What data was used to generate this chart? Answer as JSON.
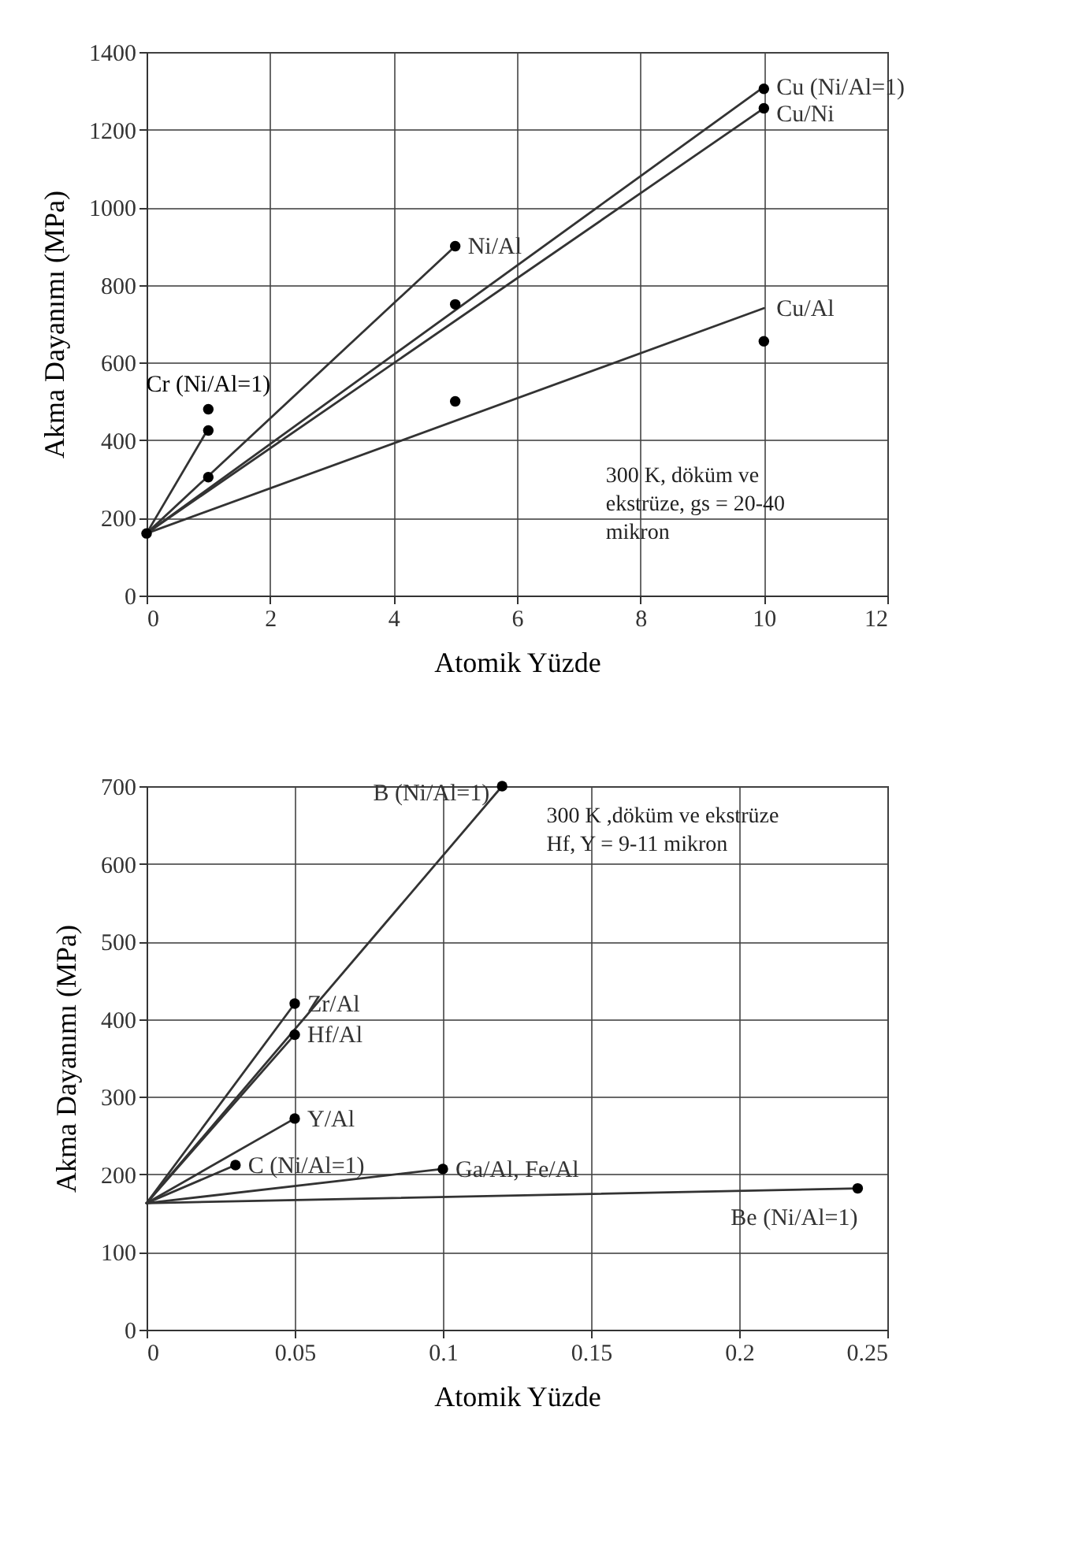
{
  "chart_data": [
    {
      "type": "line",
      "xlabel": "Atomik Yüzde",
      "ylabel": "Akma Dayanımı (MPa)",
      "xlim": [
        0,
        12
      ],
      "xticks": [
        0,
        2,
        4,
        6,
        8,
        10,
        12
      ],
      "ylim": [
        0,
        1400
      ],
      "yticks": [
        0,
        200,
        400,
        600,
        800,
        1000,
        1200,
        1400
      ],
      "grid": true,
      "series": [
        {
          "type": "scatter",
          "name": "Cr (Ni/Al=1)",
          "marker": "circle",
          "color": "#000000",
          "x": [
            1
          ],
          "values": [
            480
          ]
        },
        {
          "type": "line",
          "color": "#333333",
          "x": [
            0,
            1
          ],
          "values": [
            160,
            430
          ]
        },
        {
          "type": "line",
          "name": "Ni/Al",
          "color": "#333333",
          "x": [
            0,
            5
          ],
          "values": [
            160,
            900
          ]
        },
        {
          "type": "line",
          "name": "Cu (Ni/Al=1)",
          "color": "#333333",
          "x": [
            0,
            10
          ],
          "values": [
            160,
            1310
          ]
        },
        {
          "type": "line",
          "name": "Cu/Ni",
          "color": "#333333",
          "x": [
            0,
            10
          ],
          "values": [
            160,
            1255
          ]
        },
        {
          "type": "line",
          "name": "Cu/Al",
          "color": "#333333",
          "x": [
            0,
            10
          ],
          "values": [
            160,
            740
          ]
        },
        {
          "type": "scatter",
          "marker": "circle",
          "color": "#000000",
          "x": [
            0,
            1,
            1,
            5,
            5,
            5,
            10,
            10,
            10
          ],
          "values": [
            160,
            425,
            305,
            900,
            750,
            500,
            1305,
            1255,
            655
          ]
        }
      ],
      "annotations": [
        "300 K, döküm ve ekstrüze, gs = 20-40 mikron"
      ]
    },
    {
      "type": "line",
      "xlabel": "Atomik Yüzde",
      "ylabel": "Akma Dayanımı (MPa)",
      "xlim": [
        0,
        0.25
      ],
      "xticks": [
        0,
        0.05,
        0.1,
        0.15,
        0.2,
        0.25
      ],
      "ylim": [
        0,
        700
      ],
      "yticks": [
        0,
        100,
        200,
        300,
        400,
        500,
        600,
        700
      ],
      "grid": true,
      "series": [
        {
          "type": "line",
          "name": "B (Ni/Al=1)",
          "color": "#333333",
          "x": [
            0,
            0.12
          ],
          "values": [
            163,
            700
          ]
        },
        {
          "type": "line",
          "name": "Zr/Al",
          "color": "#333333",
          "x": [
            0,
            0.05
          ],
          "values": [
            163,
            420
          ]
        },
        {
          "type": "line",
          "name": "Hf/Al",
          "color": "#333333",
          "x": [
            0,
            0.05
          ],
          "values": [
            163,
            380
          ]
        },
        {
          "type": "line",
          "name": "Y/Al",
          "color": "#333333",
          "x": [
            0,
            0.05
          ],
          "values": [
            163,
            272
          ]
        },
        {
          "type": "line",
          "name": "C (Ni/Al=1)",
          "color": "#333333",
          "x": [
            0,
            0.03
          ],
          "values": [
            163,
            212
          ]
        },
        {
          "type": "line",
          "name": "Ga/Al, Fe/Al",
          "color": "#333333",
          "x": [
            0,
            0.1
          ],
          "values": [
            163,
            207
          ]
        },
        {
          "type": "line",
          "name": "Be (Ni/Al=1)",
          "color": "#333333",
          "x": [
            0,
            0.24
          ],
          "values": [
            163,
            182
          ]
        },
        {
          "type": "scatter",
          "marker": "circle",
          "color": "#000000",
          "x": [
            0.12,
            0.05,
            0.05,
            0.05,
            0.03,
            0.1,
            0.24
          ],
          "values": [
            700,
            420,
            380,
            272,
            212,
            207,
            182
          ]
        }
      ],
      "annotations": [
        "300 K ,döküm ve ekstrüze Hf, Y = 9-11 mikron"
      ]
    }
  ]
}
